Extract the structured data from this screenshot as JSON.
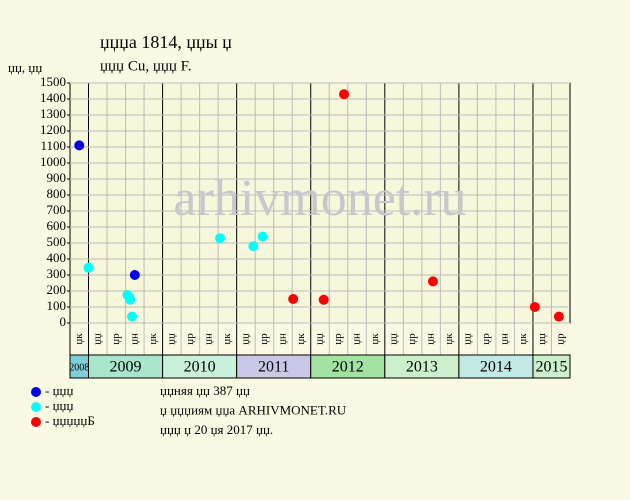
{
  "chart_data": {
    "type": "scatter",
    "title": "џџџа 1814, џџы џ",
    "subtitle": "џџџ Cu, џџџ F.",
    "y_label": "џџ, џџ",
    "watermark": "arhivmonet.ru",
    "xlim": [
      0,
      27
    ],
    "ylim": [
      0,
      1500
    ],
    "yticks": [
      0,
      100,
      200,
      300,
      400,
      500,
      600,
      700,
      800,
      900,
      1000,
      1100,
      1200,
      1300,
      1400,
      1500
    ],
    "grid": true,
    "x_groups": [
      {
        "label": "2008",
        "color": "#7fcfd9",
        "quarters": [
          "џк"
        ]
      },
      {
        "label": "2009",
        "color": "#a9e6cc",
        "quarters": [
          "џџ",
          "џр",
          "џн",
          "џк"
        ]
      },
      {
        "label": "2010",
        "color": "#c9f0d9",
        "quarters": [
          "џџ",
          "џр",
          "џн",
          "џк"
        ]
      },
      {
        "label": "2011",
        "color": "#cac8e6",
        "quarters": [
          "џџ",
          "џр",
          "џн",
          "џк"
        ]
      },
      {
        "label": "2012",
        "color": "#a2e2a2",
        "quarters": [
          "џџ",
          "џр",
          "џн",
          "џк"
        ]
      },
      {
        "label": "2013",
        "color": "#cbf0cb",
        "quarters": [
          "џџ",
          "џр",
          "џн",
          "џк"
        ]
      },
      {
        "label": "2014",
        "color": "#c2e9e3",
        "quarters": [
          "џџ",
          "џр",
          "џн",
          "џк"
        ]
      },
      {
        "label": "2015",
        "color": "#cbf0cb",
        "quarters": [
          "џџ",
          "џр"
        ]
      }
    ],
    "series": [
      {
        "name": "- џџџ",
        "color": "#0000ee",
        "x": [
          0.5,
          3.5
        ],
        "values": [
          1110,
          300
        ]
      },
      {
        "name": "- џџџ",
        "color": "#00ffff",
        "x": [
          1.0,
          3.1,
          3.2,
          3.25,
          3.35,
          8.1,
          9.9,
          10.4
        ],
        "values": [
          345,
          175,
          160,
          145,
          40,
          530,
          480,
          540
        ]
      },
      {
        "name": "- џџџџџБ",
        "color": "#ff0000",
        "x": [
          12.05,
          13.7,
          14.8,
          19.6,
          25.1,
          26.4
        ],
        "values": [
          150,
          145,
          1430,
          260,
          100,
          40
        ]
      }
    ],
    "notes": [
      "џџняя џџ 387 џџ",
      "џ џџџиям џџа ARHIVMONET.RU",
      "џџџ џ 20 џя 2017 џџ."
    ]
  }
}
